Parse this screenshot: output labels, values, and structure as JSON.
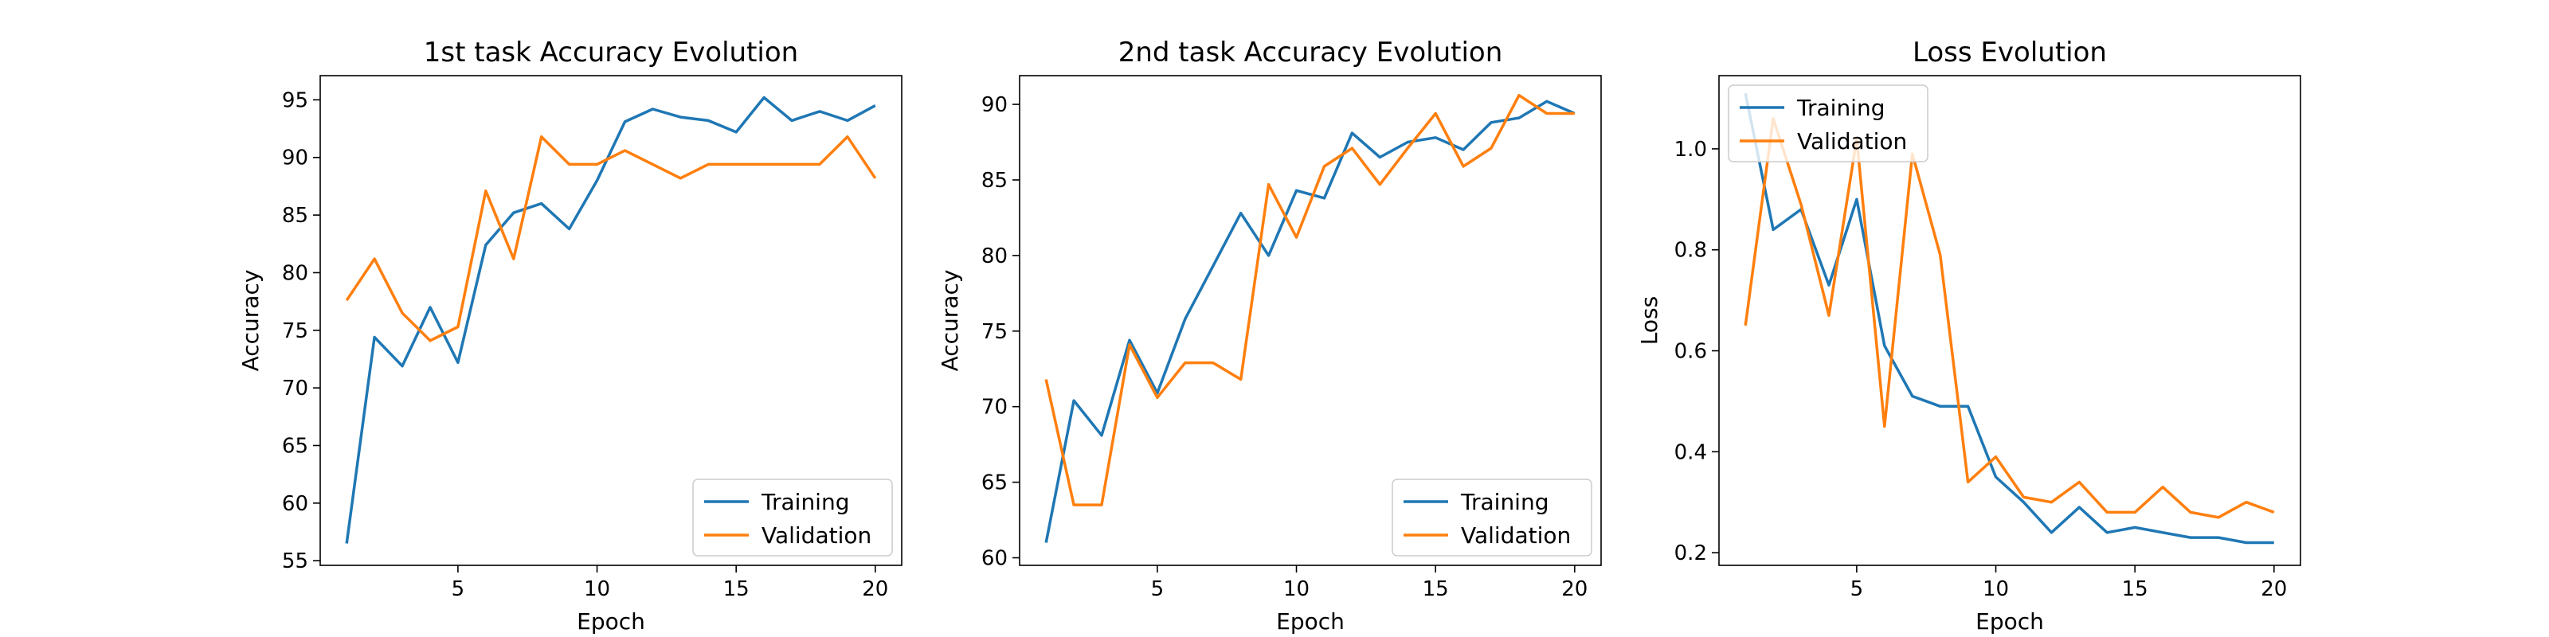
{
  "chart_data": [
    {
      "type": "line",
      "title": "1st task Accuracy Evolution",
      "xlabel": "Epoch",
      "ylabel": "Accuracy",
      "x": [
        1,
        2,
        3,
        4,
        5,
        6,
        7,
        8,
        9,
        10,
        11,
        12,
        13,
        14,
        15,
        16,
        17,
        18,
        19,
        20
      ],
      "xlim": [
        0.05,
        20.95
      ],
      "ylim": [
        54.6,
        97.1
      ],
      "xticks": [
        5,
        10,
        15,
        20
      ],
      "yticks": [
        55,
        60,
        65,
        70,
        75,
        80,
        85,
        90,
        95
      ],
      "legend": "lower-right",
      "grid": false,
      "series": [
        {
          "name": "Training",
          "color": "#1f77b4",
          "values": [
            56.5,
            74.4,
            71.9,
            77.0,
            72.2,
            82.4,
            85.2,
            86.0,
            83.8,
            88.0,
            93.1,
            94.2,
            93.5,
            93.2,
            92.2,
            95.2,
            93.2,
            94.0,
            93.2,
            94.5
          ]
        },
        {
          "name": "Validation",
          "color": "#ff7f0e",
          "values": [
            77.6,
            81.2,
            76.5,
            74.1,
            75.3,
            87.1,
            81.2,
            91.8,
            89.4,
            89.4,
            90.6,
            89.4,
            88.2,
            89.4,
            89.4,
            89.4,
            89.4,
            89.4,
            91.8,
            88.2
          ]
        }
      ]
    },
    {
      "type": "line",
      "title": "2nd task Accuracy Evolution",
      "xlabel": "Epoch",
      "ylabel": "Accuracy",
      "x": [
        1,
        2,
        3,
        4,
        5,
        6,
        7,
        8,
        9,
        10,
        11,
        12,
        13,
        14,
        15,
        16,
        17,
        18,
        19,
        20
      ],
      "xlim": [
        0.05,
        20.95
      ],
      "ylim": [
        59.5,
        91.9
      ],
      "xticks": [
        5,
        10,
        15,
        20
      ],
      "yticks": [
        60,
        65,
        70,
        75,
        80,
        85,
        90
      ],
      "legend": "lower-right",
      "grid": false,
      "series": [
        {
          "name": "Training",
          "color": "#1f77b4",
          "values": [
            61.0,
            70.4,
            68.1,
            74.4,
            70.9,
            75.8,
            79.3,
            82.8,
            80.0,
            84.3,
            83.8,
            88.1,
            86.5,
            87.5,
            87.8,
            87.0,
            88.8,
            89.1,
            90.2,
            89.4
          ]
        },
        {
          "name": "Validation",
          "color": "#ff7f0e",
          "values": [
            71.8,
            63.5,
            63.5,
            74.1,
            70.6,
            72.9,
            72.9,
            71.8,
            84.7,
            81.2,
            85.9,
            87.1,
            84.7,
            87.1,
            89.4,
            85.9,
            87.1,
            90.6,
            89.4,
            89.4
          ]
        }
      ]
    },
    {
      "type": "line",
      "title": "Loss Evolution",
      "xlabel": "Epoch",
      "ylabel": "Loss",
      "x": [
        1,
        2,
        3,
        4,
        5,
        6,
        7,
        8,
        9,
        10,
        11,
        12,
        13,
        14,
        15,
        16,
        17,
        18,
        19,
        20
      ],
      "xlim": [
        0.05,
        20.95
      ],
      "ylim": [
        0.175,
        1.145
      ],
      "xticks": [
        5,
        10,
        15,
        20
      ],
      "yticks": [
        0.2,
        0.4,
        0.6,
        0.8,
        1.0
      ],
      "legend": "upper-left",
      "grid": false,
      "series": [
        {
          "name": "Training",
          "color": "#1f77b4",
          "values": [
            1.11,
            0.84,
            0.88,
            0.73,
            0.9,
            0.61,
            0.51,
            0.49,
            0.49,
            0.35,
            0.3,
            0.24,
            0.29,
            0.24,
            0.25,
            0.24,
            0.23,
            0.23,
            0.22,
            0.22
          ]
        },
        {
          "name": "Validation",
          "color": "#ff7f0e",
          "values": [
            0.65,
            1.06,
            0.89,
            0.67,
            1.02,
            0.45,
            0.99,
            0.79,
            0.34,
            0.39,
            0.31,
            0.3,
            0.34,
            0.28,
            0.28,
            0.33,
            0.28,
            0.27,
            0.3,
            0.28
          ]
        }
      ]
    }
  ]
}
